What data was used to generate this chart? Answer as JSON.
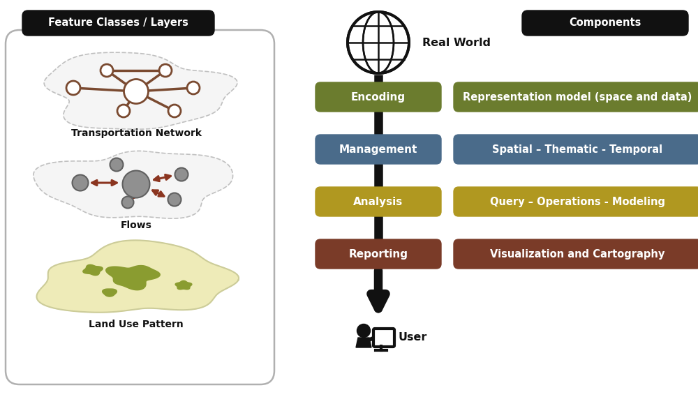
{
  "bg_color": "#ffffff",
  "left_header_label": "Feature Classes / Layers",
  "right_header_label": "Components",
  "flow_items": [
    {
      "label": "Encoding",
      "color": "#6b7c2e",
      "component": "Representation model (space and data)"
    },
    {
      "label": "Management",
      "color": "#4a6b8a",
      "component": "Spatial – Thematic - Temporal"
    },
    {
      "label": "Analysis",
      "color": "#b09820",
      "component": "Query – Operations - Modeling"
    },
    {
      "label": "Reporting",
      "color": "#7a3b28",
      "component": "Visualization and Cartography"
    }
  ],
  "network_edge_color": "#7a4a30",
  "flow_arrow_color": "#8b3520",
  "globe_color": "#111111",
  "node_fill": "#ffffff",
  "blob_fill": "#f5f5f5",
  "blob_dash_color": "#bbbbbb",
  "gray_node_fill": "#909090",
  "gray_node_edge": "#606060",
  "land_outer_color": "#eeebb8",
  "land_border_color": "#cccc99",
  "land_green_color": "#8a9c30"
}
